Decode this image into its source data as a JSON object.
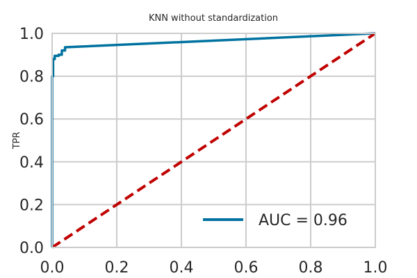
{
  "chart_data": {
    "type": "line",
    "title": "KNN without standardization",
    "xlabel": "",
    "ylabel": "TPR",
    "xlim": [
      0.0,
      1.0
    ],
    "ylim": [
      0.0,
      1.0
    ],
    "x_ticks": [
      "0.0",
      "0.2",
      "0.4",
      "0.6",
      "0.8",
      "1.0"
    ],
    "y_ticks": [
      "0.0",
      "0.2",
      "0.4",
      "0.6",
      "0.8",
      "1.0"
    ],
    "grid": true,
    "legend_position": "lower-right",
    "series": [
      {
        "name": "AUC = 0.96",
        "color": "#0072a0",
        "style": "solid",
        "x": [
          0.0,
          0.0,
          0.003,
          0.003,
          0.008,
          0.008,
          0.02,
          0.02,
          0.03,
          0.03,
          0.04,
          0.04,
          1.0
        ],
        "y": [
          0.0,
          0.8,
          0.8,
          0.88,
          0.88,
          0.895,
          0.895,
          0.9,
          0.9,
          0.92,
          0.92,
          0.935,
          1.0
        ]
      },
      {
        "name": "",
        "color": "#c00000",
        "style": "dashed",
        "x": [
          0.0,
          1.0
        ],
        "y": [
          0.0,
          1.0
        ]
      }
    ]
  }
}
